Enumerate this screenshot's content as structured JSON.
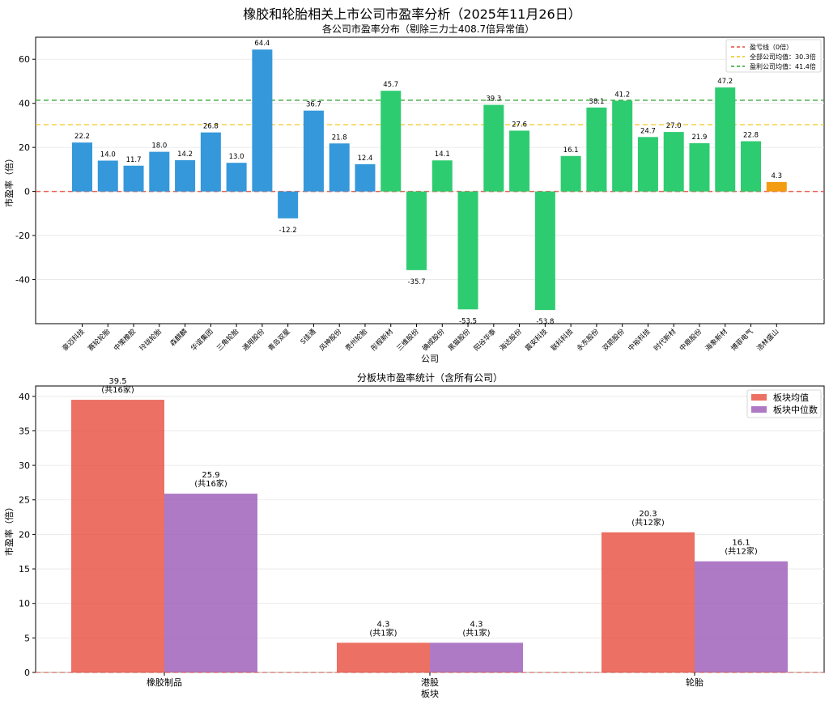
{
  "figure": {
    "suptitle": "橡胶和轮胎相关上市公司市盈率分析（2025年11月26日）"
  },
  "chart_data": [
    {
      "type": "bar",
      "title": "各公司市盈率分布（剔除三力士408.7倍异常值）",
      "xlabel": "公司",
      "ylabel": "市盈率（倍）",
      "ylim": [
        -60,
        70
      ],
      "yticks": [
        -40,
        -20,
        0,
        20,
        40,
        60
      ],
      "categories": [
        "豪迈科技",
        "赛轮轮胎",
        "中策橡胶",
        "玲珑轮胎",
        "森麒麟",
        "华谊集团",
        "三角轮胎",
        "通用股份",
        "青岛双星",
        "S佳通",
        "风神股份",
        "贵州轮胎",
        "彤程新材",
        "三维股份",
        "确成股份",
        "黑猫股份",
        "阳谷华泰",
        "海达股份",
        "震安科技",
        "联科科技",
        "永东股份",
        "双箭股份",
        "中裕科技",
        "时代新材",
        "中鼎股份",
        "海象新材",
        "博菲电气",
        "浩林盛山"
      ],
      "values": [
        22.2,
        14.0,
        11.7,
        18.0,
        14.2,
        26.8,
        13.0,
        64.4,
        -12.2,
        36.7,
        21.8,
        12.4,
        45.7,
        -35.7,
        14.1,
        -53.5,
        39.3,
        27.6,
        -53.8,
        16.1,
        38.1,
        41.2,
        24.7,
        27.0,
        21.9,
        47.2,
        22.8,
        4.3
      ],
      "value_labels": [
        "22.2",
        "14.0",
        "11.7",
        "18.0",
        "14.2",
        "26.8",
        "13.0",
        "64.4",
        "-12.2",
        "36.7",
        "21.8",
        "12.4",
        "45.7",
        "-35.7",
        "14.1",
        "-53.5",
        "39.3",
        "27.6",
        "-53.8",
        "16.1",
        "38.1",
        "41.2",
        "24.7",
        "27.0",
        "21.9",
        "47.2",
        "22.8",
        "4.3"
      ],
      "segments": [
        "tire",
        "tire",
        "tire",
        "tire",
        "tire",
        "tire",
        "tire",
        "tire",
        "tire",
        "tire",
        "tire",
        "tire",
        "rubber",
        "rubber",
        "rubber",
        "rubber",
        "rubber",
        "rubber",
        "rubber",
        "rubber",
        "rubber",
        "rubber",
        "rubber",
        "rubber",
        "rubber",
        "rubber",
        "rubber",
        "hk"
      ],
      "segment_colors": {
        "tire": "#3498db",
        "rubber": "#2ecc71",
        "hk": "#f39c12"
      },
      "reference_lines": [
        {
          "label": "盈亏线（0倍）",
          "value": 0,
          "color": "#e74c3c"
        },
        {
          "label": "全部公司均值：30.3倍",
          "value": 30.3,
          "color": "#f1c40f"
        },
        {
          "label": "盈利公司均值：41.4倍",
          "value": 41.4,
          "color": "#2ca02c"
        }
      ],
      "legend_position": "upper-right"
    },
    {
      "type": "bar",
      "title": "分板块市盈率统计（含所有公司）",
      "xlabel": "板块",
      "ylabel": "市盈率（倍）",
      "ylim": [
        0,
        41.5
      ],
      "yticks": [
        0,
        5,
        10,
        15,
        20,
        25,
        30,
        35,
        40
      ],
      "categories": [
        "橡胶制品",
        "港股",
        "轮胎"
      ],
      "series": [
        {
          "name": "板块均值",
          "color": "#e74c3c",
          "values": [
            39.5,
            4.3,
            20.3
          ],
          "labels": [
            "39.5",
            "4.3",
            "20.3"
          ],
          "notes": [
            "(共16家)",
            "(共1家)",
            "(共12家)"
          ]
        },
        {
          "name": "板块中位数",
          "color": "#9b59b6",
          "values": [
            25.9,
            4.3,
            16.1
          ],
          "labels": [
            "25.9",
            "4.3",
            "16.1"
          ],
          "notes": [
            "(共16家)",
            "(共1家)",
            "(共12家)"
          ]
        }
      ],
      "reference_line": {
        "value": 0,
        "color": "#e74c3c"
      },
      "legend_position": "upper-right"
    }
  ]
}
